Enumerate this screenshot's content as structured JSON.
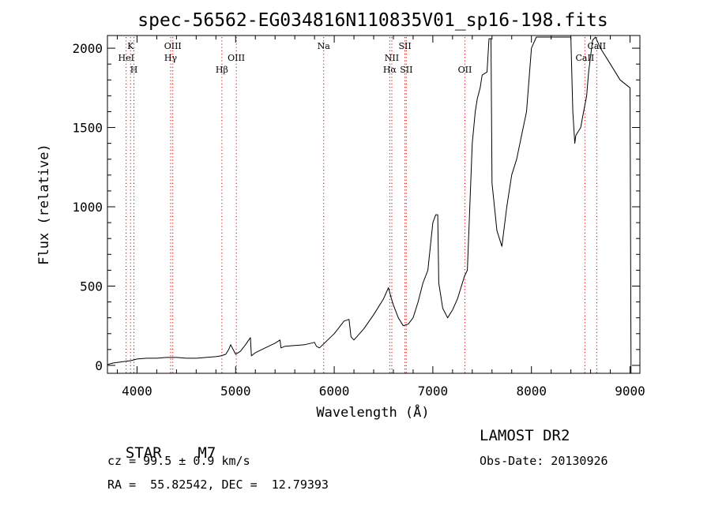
{
  "chart_data": {
    "type": "line",
    "title": "spec-56562-EG034816N110835V01_sp16-198.fits",
    "xlabel": "Wavelength (Å)",
    "ylabel": "Flux (relative)",
    "xlim": [
      3700,
      9100
    ],
    "ylim": [
      -50,
      2080
    ],
    "xticks": [
      4000,
      5000,
      6000,
      7000,
      8000,
      9000
    ],
    "yticks": [
      0,
      500,
      1000,
      1500,
      2000
    ],
    "grid": false,
    "series": [
      {
        "x": [
          3700,
          3760,
          3820,
          3880,
          3940,
          4000,
          4100,
          4200,
          4300,
          4400,
          4500,
          4600,
          4700,
          4800,
          4850,
          4900,
          4930,
          4950,
          5000,
          5050,
          5100,
          5150,
          5160,
          5200,
          5300,
          5400,
          5450,
          5460,
          5500,
          5600,
          5700,
          5800,
          5820,
          5850,
          5900,
          6000,
          6100,
          6150,
          6170,
          6200,
          6300,
          6400,
          6500,
          6550,
          6580,
          6600,
          6650,
          6700,
          6750,
          6800,
          6850,
          6900,
          6950,
          7000,
          7030,
          7050,
          7060,
          7100,
          7150,
          7200,
          7250,
          7300,
          7320,
          7350,
          7400,
          7430,
          7450,
          7480,
          7500,
          7550,
          7570,
          7590,
          7600,
          7650,
          7700,
          7750,
          7800,
          7850,
          7900,
          7950,
          8000,
          8050,
          8100,
          8200,
          8300,
          8400,
          8420,
          8440,
          8450,
          8500,
          8520,
          8560,
          8580,
          8600,
          8620,
          8650,
          8700,
          8800,
          8900,
          9000,
          9010
        ],
        "values": [
          5,
          15,
          20,
          25,
          30,
          40,
          45,
          45,
          50,
          50,
          45,
          45,
          50,
          55,
          60,
          70,
          100,
          130,
          70,
          90,
          130,
          175,
          60,
          80,
          110,
          140,
          160,
          110,
          120,
          125,
          130,
          145,
          120,
          110,
          140,
          200,
          280,
          290,
          180,
          160,
          230,
          320,
          420,
          490,
          420,
          380,
          300,
          250,
          260,
          300,
          400,
          520,
          600,
          900,
          950,
          950,
          520,
          360,
          300,
          350,
          420,
          520,
          560,
          600,
          1400,
          1600,
          1680,
          1750,
          1830,
          1850,
          2060,
          2060,
          1150,
          850,
          750,
          1000,
          1200,
          1300,
          1450,
          1600,
          2000,
          2070,
          2070,
          2070,
          2070,
          2070,
          1600,
          1400,
          1450,
          1500,
          1570,
          1700,
          1850,
          1950,
          2050,
          2070,
          2000,
          1900,
          1800,
          1750,
          -50
        ]
      }
    ],
    "line_markers": [
      {
        "name": "K",
        "x": 3934
      },
      {
        "name": "HeI",
        "x": 3890
      },
      {
        "name": "H",
        "x": 3969
      },
      {
        "name": "OIII",
        "x": 4363
      },
      {
        "name": "Hγ",
        "x": 4341
      },
      {
        "name": "OIII",
        "x": 5007
      },
      {
        "name": "Hβ",
        "x": 4861
      },
      {
        "name": "Na",
        "x": 5893
      },
      {
        "name": "SII",
        "x": 6717
      },
      {
        "name": "NII",
        "x": 6584
      },
      {
        "name": "Hα",
        "x": 6563
      },
      {
        "name": "SII",
        "x": 6731
      },
      {
        "name": "OII",
        "x": 7325
      },
      {
        "name": "CaII",
        "x": 8542
      },
      {
        "name": "CaII",
        "x": 8662
      }
    ]
  },
  "info": {
    "class_label": "STAR",
    "subclass": "M7",
    "survey": "LAMOST DR2",
    "cz": "cz = 99.5 ± 0.9 km/s",
    "obs_date": "Obs-Date: 20130926",
    "coords": "RA =  55.82542, DEC =  12.79393"
  }
}
